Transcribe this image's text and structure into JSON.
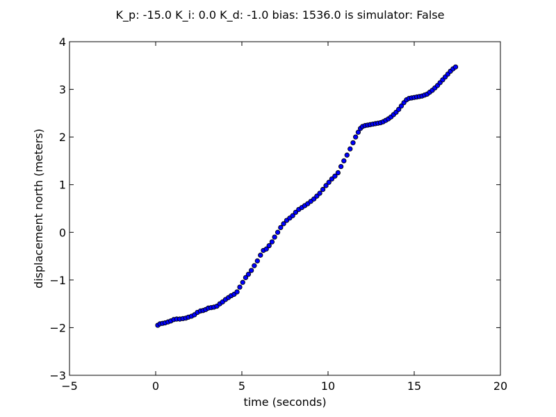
{
  "chart_data": {
    "type": "scatter",
    "title": "K_p: -15.0 K_i: 0.0 K_d: -1.0 bias: 1536.0 is simulator: False",
    "xlabel": "time (seconds)",
    "ylabel": "displacement north (meters)",
    "xlim": [
      -5,
      20
    ],
    "ylim": [
      -3,
      4
    ],
    "xticks": [
      -5,
      0,
      5,
      10,
      15,
      20
    ],
    "yticks": [
      -3,
      -2,
      -1,
      0,
      1,
      2,
      3,
      4
    ],
    "xtick_labels": [
      "−5",
      "0",
      "5",
      "10",
      "15",
      "20"
    ],
    "ytick_labels": [
      "−3",
      "−2",
      "−1",
      "0",
      "1",
      "2",
      "3",
      "4"
    ],
    "grid": false,
    "marker_color": "#0000ff",
    "marker_edge": "#000000",
    "points": [
      [
        0.12,
        -1.95
      ],
      [
        0.25,
        -1.92
      ],
      [
        0.4,
        -1.91
      ],
      [
        0.55,
        -1.9
      ],
      [
        0.72,
        -1.88
      ],
      [
        0.88,
        -1.86
      ],
      [
        1.05,
        -1.83
      ],
      [
        1.22,
        -1.82
      ],
      [
        1.4,
        -1.82
      ],
      [
        1.58,
        -1.81
      ],
      [
        1.75,
        -1.8
      ],
      [
        1.9,
        -1.78
      ],
      [
        2.08,
        -1.76
      ],
      [
        2.25,
        -1.73
      ],
      [
        2.42,
        -1.68
      ],
      [
        2.6,
        -1.65
      ],
      [
        2.75,
        -1.64
      ],
      [
        2.9,
        -1.62
      ],
      [
        3.05,
        -1.59
      ],
      [
        3.22,
        -1.58
      ],
      [
        3.38,
        -1.57
      ],
      [
        3.55,
        -1.55
      ],
      [
        3.72,
        -1.5
      ],
      [
        3.88,
        -1.46
      ],
      [
        4.05,
        -1.41
      ],
      [
        4.22,
        -1.37
      ],
      [
        4.38,
        -1.33
      ],
      [
        4.55,
        -1.3
      ],
      [
        4.72,
        -1.25
      ],
      [
        4.88,
        -1.15
      ],
      [
        5.05,
        -1.05
      ],
      [
        5.22,
        -0.95
      ],
      [
        5.38,
        -0.88
      ],
      [
        5.55,
        -0.8
      ],
      [
        5.72,
        -0.7
      ],
      [
        5.9,
        -0.6
      ],
      [
        6.08,
        -0.48
      ],
      [
        6.25,
        -0.38
      ],
      [
        6.42,
        -0.35
      ],
      [
        6.58,
        -0.28
      ],
      [
        6.75,
        -0.2
      ],
      [
        6.9,
        -0.1
      ],
      [
        7.08,
        0.0
      ],
      [
        7.25,
        0.1
      ],
      [
        7.42,
        0.18
      ],
      [
        7.6,
        0.25
      ],
      [
        7.78,
        0.3
      ],
      [
        7.95,
        0.35
      ],
      [
        8.12,
        0.42
      ],
      [
        8.3,
        0.48
      ],
      [
        8.48,
        0.52
      ],
      [
        8.65,
        0.56
      ],
      [
        8.82,
        0.6
      ],
      [
        9.0,
        0.65
      ],
      [
        9.18,
        0.7
      ],
      [
        9.35,
        0.76
      ],
      [
        9.52,
        0.82
      ],
      [
        9.7,
        0.9
      ],
      [
        9.88,
        0.98
      ],
      [
        10.05,
        1.05
      ],
      [
        10.22,
        1.12
      ],
      [
        10.4,
        1.18
      ],
      [
        10.58,
        1.25
      ],
      [
        10.75,
        1.38
      ],
      [
        10.92,
        1.5
      ],
      [
        11.1,
        1.62
      ],
      [
        11.28,
        1.75
      ],
      [
        11.45,
        1.88
      ],
      [
        11.6,
        2.0
      ],
      [
        11.75,
        2.1
      ],
      [
        11.88,
        2.18
      ],
      [
        12.0,
        2.22
      ],
      [
        12.15,
        2.24
      ],
      [
        12.3,
        2.25
      ],
      [
        12.45,
        2.26
      ],
      [
        12.6,
        2.27
      ],
      [
        12.75,
        2.28
      ],
      [
        12.9,
        2.29
      ],
      [
        13.05,
        2.3
      ],
      [
        13.2,
        2.32
      ],
      [
        13.35,
        2.35
      ],
      [
        13.5,
        2.38
      ],
      [
        13.65,
        2.42
      ],
      [
        13.8,
        2.47
      ],
      [
        13.95,
        2.52
      ],
      [
        14.1,
        2.58
      ],
      [
        14.25,
        2.65
      ],
      [
        14.4,
        2.72
      ],
      [
        14.55,
        2.78
      ],
      [
        14.7,
        2.81
      ],
      [
        14.85,
        2.82
      ],
      [
        15.0,
        2.83
      ],
      [
        15.15,
        2.84
      ],
      [
        15.3,
        2.85
      ],
      [
        15.45,
        2.86
      ],
      [
        15.6,
        2.88
      ],
      [
        15.75,
        2.9
      ],
      [
        15.9,
        2.94
      ],
      [
        16.05,
        2.98
      ],
      [
        16.2,
        3.03
      ],
      [
        16.35,
        3.08
      ],
      [
        16.5,
        3.14
      ],
      [
        16.65,
        3.2
      ],
      [
        16.8,
        3.26
      ],
      [
        16.95,
        3.32
      ],
      [
        17.1,
        3.38
      ],
      [
        17.25,
        3.43
      ],
      [
        17.4,
        3.47
      ]
    ]
  }
}
